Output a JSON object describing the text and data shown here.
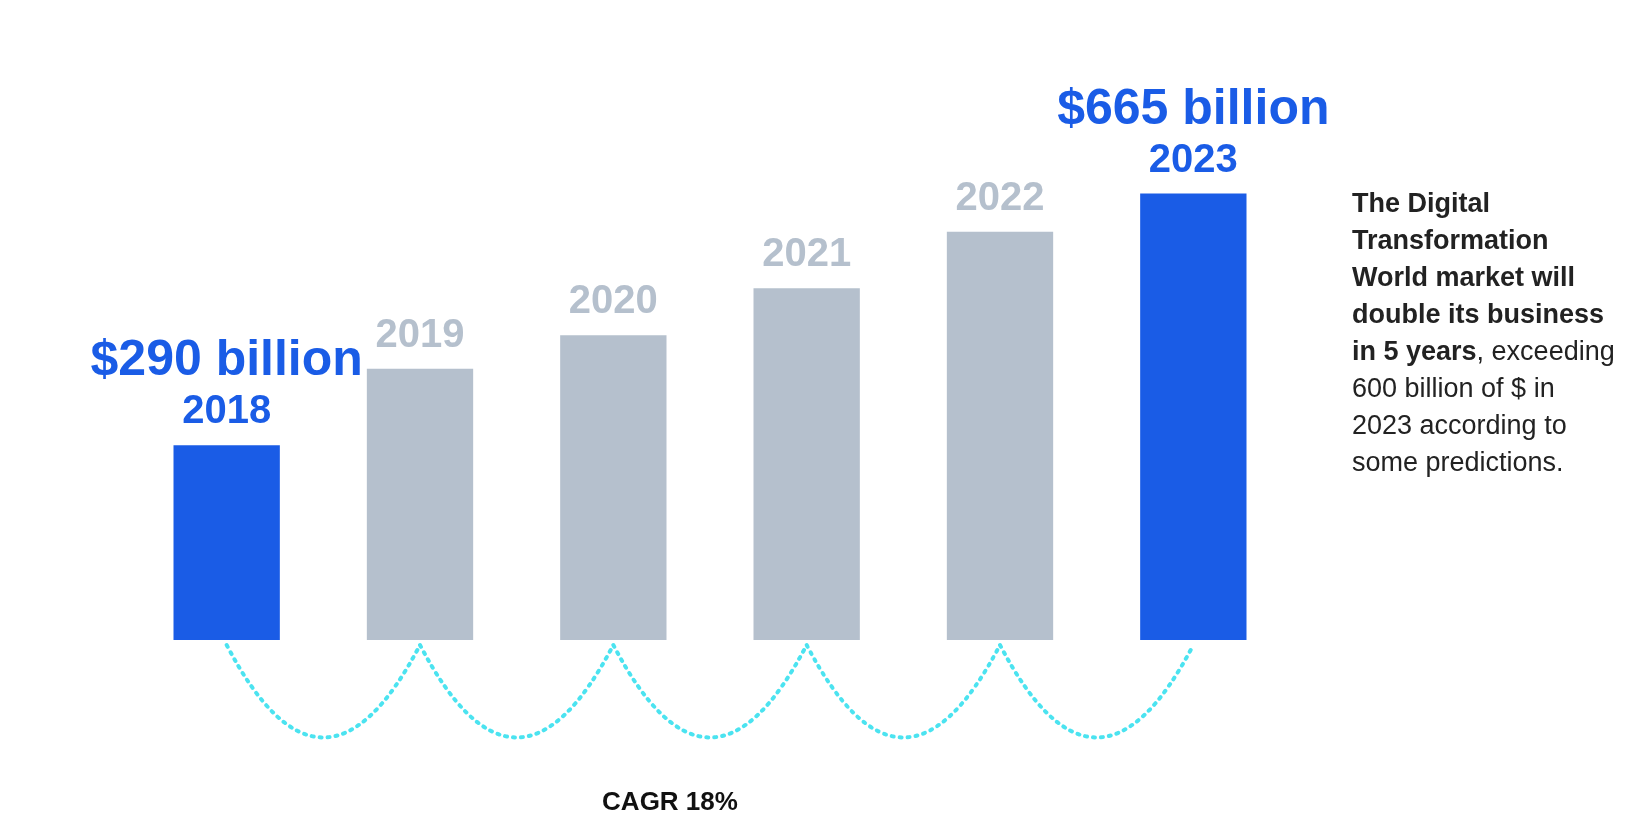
{
  "chart_data": {
    "type": "bar",
    "categories": [
      "2018",
      "2019",
      "2020",
      "2021",
      "2022",
      "2023"
    ],
    "values": [
      290,
      404,
      454,
      524,
      608,
      665
    ],
    "value_labels": [
      "$290 billion",
      null,
      null,
      null,
      null,
      "$665 billion"
    ],
    "colors": [
      "#1a5ce6",
      "#b5c0cd",
      "#b5c0cd",
      "#b5c0cd",
      "#b5c0cd",
      "#1a5ce6"
    ],
    "annotations": [
      "The Digital Transformation World market will double its business in 5 years",
      ", exceeding 600 billion of $ in 2023 according to some predictions.",
      "CAGR 18%"
    ],
    "legend": false
  }
}
